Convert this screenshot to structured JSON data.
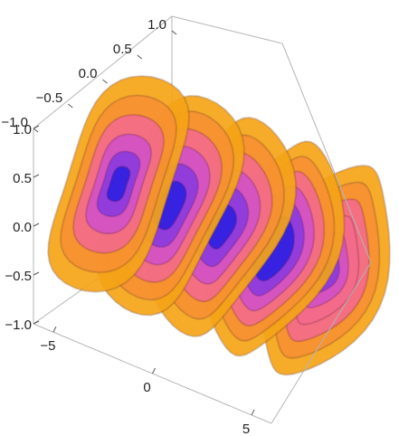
{
  "chart_data": {
    "type": "contour3d",
    "title": "",
    "xlabel": "",
    "ylabel": "",
    "zlabel": "",
    "x_axis": {
      "range": [
        -6,
        6
      ],
      "ticks": [
        -5,
        0,
        5
      ],
      "tick_labels": [
        "−5",
        "0",
        "5"
      ]
    },
    "y_axis": {
      "range": [
        -1,
        1
      ],
      "ticks": [
        -1,
        -0.5,
        0,
        0.5,
        1
      ],
      "tick_labels": [
        "−1.0",
        "−0.5",
        "0.0",
        "0.5",
        "1.0"
      ]
    },
    "z_axis": {
      "range": [
        -1,
        1
      ],
      "ticks": [
        -1,
        -0.5,
        0,
        0.5,
        1
      ],
      "tick_labels": [
        "−1.0",
        "−0.5",
        "0.0",
        "0.5",
        "1.0"
      ]
    },
    "shells": [
      {
        "x": -5.2,
        "rings": [
          1.0,
          0.82,
          0.64,
          0.46,
          0.3,
          0.16
        ]
      },
      {
        "x": -2.6,
        "rings": [
          1.0,
          0.86,
          0.7,
          0.54,
          0.38,
          0.22
        ]
      },
      {
        "x": 0.0,
        "rings": [
          1.0,
          0.84,
          0.68,
          0.52,
          0.36,
          0.2
        ]
      },
      {
        "x": 2.6,
        "rings": [
          1.0,
          0.86,
          0.72,
          0.58,
          0.44,
          0.3
        ]
      },
      {
        "x": 5.2,
        "rings": [
          1.0,
          0.84,
          0.68,
          0.52,
          0.36,
          0.22,
          0.1
        ]
      }
    ],
    "color_scale": [
      "#2a1ee0",
      "#8a3ae0",
      "#d050c8",
      "#f46a8c",
      "#f79030",
      "#f5a414"
    ],
    "box": true,
    "grid": false
  }
}
